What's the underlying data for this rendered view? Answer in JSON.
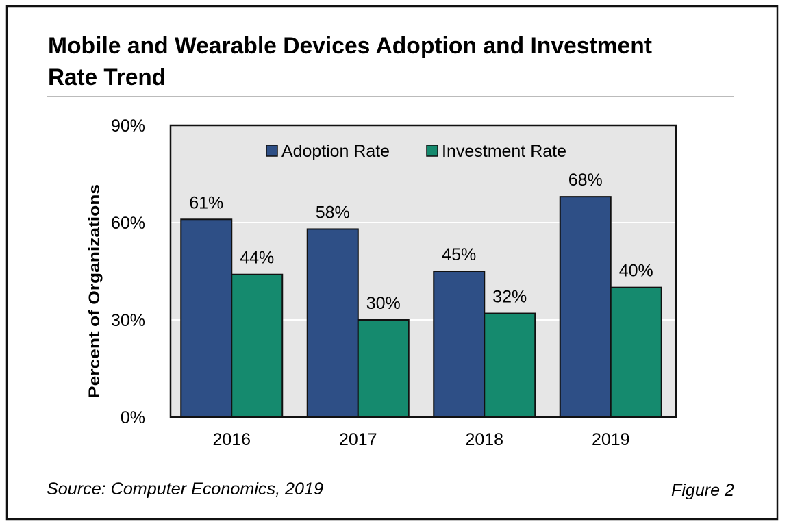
{
  "figure": {
    "title_line1": "Mobile and Wearable Devices Adoption and Investment",
    "title_line2": "Rate Trend",
    "source": "Source: Computer Economics, 2019",
    "figure_label": "Figure 2"
  },
  "chart_data": {
    "type": "bar",
    "title": "Mobile and Wearable Devices Adoption and Investment Rate Trend",
    "xlabel": "",
    "ylabel": "Percent of Organizations",
    "categories": [
      "2016",
      "2017",
      "2018",
      "2019"
    ],
    "series": [
      {
        "name": "Adoption Rate",
        "values": [
          61,
          58,
          45,
          68
        ],
        "labels": [
          "61%",
          "58%",
          "45%",
          "68%"
        ],
        "color": "#2e4f86"
      },
      {
        "name": "Investment Rate",
        "values": [
          44,
          30,
          32,
          40
        ],
        "labels": [
          "44%",
          "30%",
          "32%",
          "40%"
        ],
        "color": "#158a6e"
      }
    ],
    "ylim": [
      0,
      90
    ],
    "yticks": [
      0,
      30,
      60,
      90
    ],
    "ytick_labels": [
      "0%",
      "30%",
      "60%",
      "90%"
    ],
    "grid": true,
    "legend_position": "top-center",
    "plot_background": "#e6e6e6"
  }
}
